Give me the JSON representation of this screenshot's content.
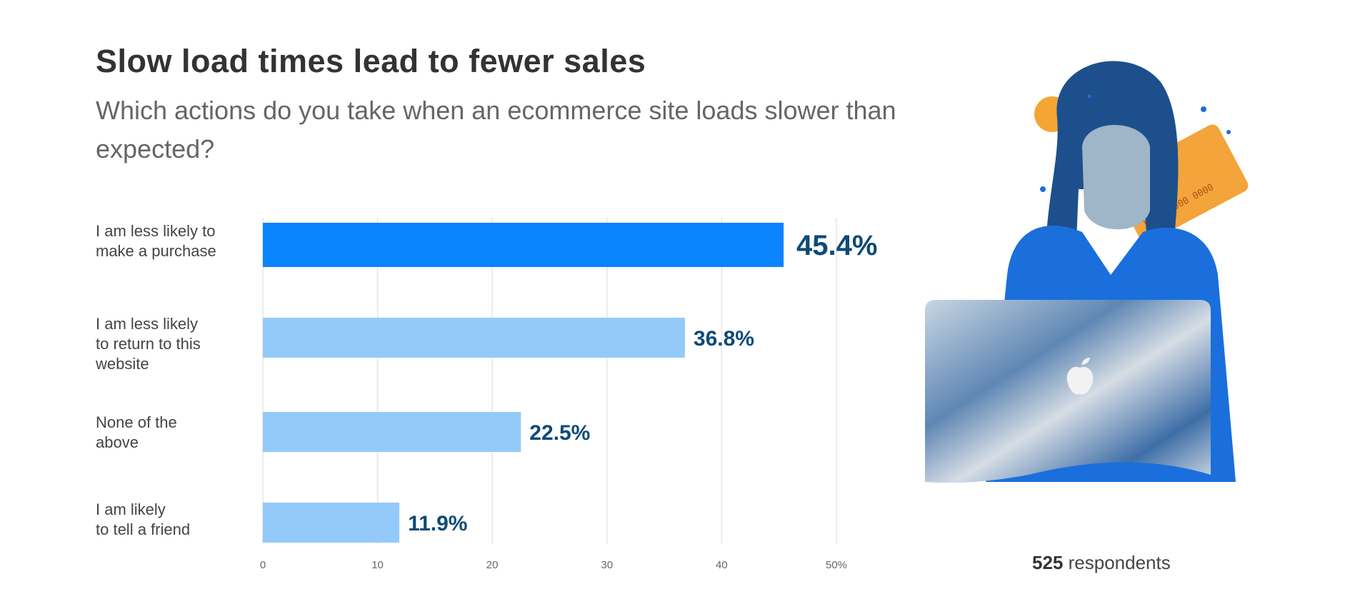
{
  "colors": {
    "highlight_bar": "#0a84ff",
    "bar": "#94cafa",
    "value_label": "#0e4a76",
    "grid": "#e6e6e6"
  },
  "chart_data": {
    "type": "bar",
    "orientation": "horizontal",
    "title": "Slow load times lead to fewer sales",
    "subtitle": "Which actions do you take when an ecommerce site loads slower than expected?",
    "categories": [
      "I am less likely to make a purchase",
      "I am less likely to return to this website",
      "None of the above",
      "I am likely to tell a friend"
    ],
    "category_lines": [
      [
        "I am less likely to",
        "make a purchase"
      ],
      [
        "I am less likely",
        "to return to this",
        "website"
      ],
      [
        "None of the",
        "above"
      ],
      [
        "I am likely",
        "to tell a friend"
      ]
    ],
    "values": [
      45.4,
      36.8,
      22.5,
      11.9
    ],
    "value_labels": [
      "45.4%",
      "36.8%",
      "22.5%",
      "11.9%"
    ],
    "xlim": [
      0,
      52
    ],
    "xticks": [
      0,
      10,
      20,
      30,
      40,
      50
    ],
    "xtick_labels": [
      "0",
      "10",
      "20",
      "30",
      "40",
      "50%"
    ],
    "grid": true,
    "highlight_index": 0
  },
  "footer": {
    "count": "525",
    "label": " respondents"
  },
  "illustration": {
    "icon": "woman-with-laptop-and-credit-card-photo"
  }
}
